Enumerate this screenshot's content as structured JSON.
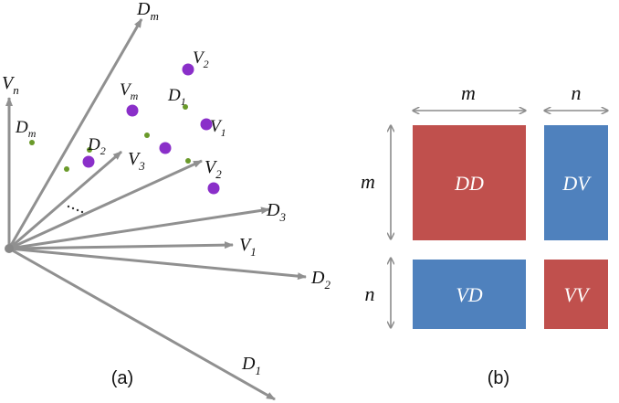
{
  "panel_a": {
    "caption": "(a)",
    "vectors": [
      {
        "base": "D",
        "sub": "m"
      },
      {
        "base": "V",
        "sub": "n"
      },
      {
        "base": "V",
        "sub": "3"
      },
      {
        "base": "V",
        "sub": "2"
      },
      {
        "base": "D",
        "sub": "3"
      },
      {
        "base": "V",
        "sub": "1"
      },
      {
        "base": "D",
        "sub": "2"
      },
      {
        "base": "D",
        "sub": "1"
      }
    ],
    "point_labels": [
      {
        "base": "D",
        "sub": "m"
      },
      {
        "base": "D",
        "sub": "2"
      },
      {
        "base": "D",
        "sub": "1"
      },
      {
        "base": "V",
        "sub": "m"
      },
      {
        "base": "V",
        "sub": "2"
      },
      {
        "base": "V",
        "sub": "1"
      }
    ],
    "colors": {
      "arrow": "#909090",
      "v_point": "#8a2fc9",
      "d_point": "#6a9a2a",
      "ellipsis": "#333333"
    }
  },
  "panel_b": {
    "caption": "(b)",
    "top_dims": [
      "m",
      "n"
    ],
    "side_dims": [
      "m",
      "n"
    ],
    "blocks": {
      "dd": "DD",
      "dv": "DV",
      "vd": "VD",
      "vv": "VV"
    },
    "colors": {
      "red": "#c0504d",
      "blue": "#4f81bd",
      "dim_arrow": "#8c8c8c"
    }
  }
}
